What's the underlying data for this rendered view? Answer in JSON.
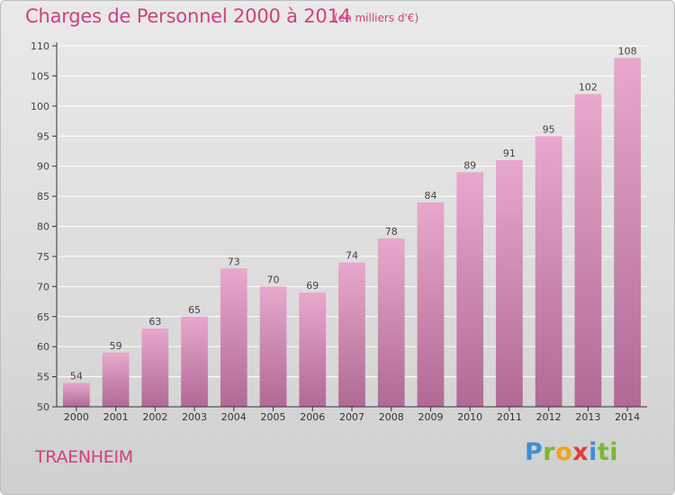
{
  "header": {
    "title": "Charges de Personnel 2000 à 2014",
    "subtitle": "(en milliers d'€)"
  },
  "footer": {
    "town": "TRAENHEIM",
    "logo_text": "Proxiti",
    "logo_letters": [
      "P",
      "r",
      "o",
      "x",
      "i",
      "ti"
    ]
  },
  "colors": {
    "title": "#d0407e",
    "bar_light": "#e8a8cc",
    "bar_dark": "#b06a94",
    "axis": "#333333",
    "grid": "#ffffff"
  },
  "chart_data": {
    "type": "bar",
    "title": "Charges de Personnel 2000 à 2014",
    "subtitle": "(en milliers d'€)",
    "categories": [
      "2000",
      "2001",
      "2002",
      "2003",
      "2004",
      "2005",
      "2006",
      "2007",
      "2008",
      "2009",
      "2010",
      "2011",
      "2012",
      "2013",
      "2014"
    ],
    "values": [
      54,
      59,
      63,
      65,
      73,
      70,
      69,
      74,
      78,
      84,
      89,
      91,
      95,
      102,
      108
    ],
    "ylim": [
      50,
      110
    ],
    "yticks": [
      50,
      55,
      60,
      65,
      70,
      75,
      80,
      85,
      90,
      95,
      100,
      105,
      110
    ],
    "grid": true,
    "data_labels": true
  }
}
